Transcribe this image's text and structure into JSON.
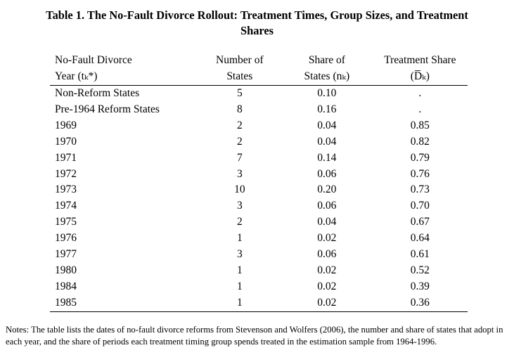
{
  "title_line1": "Table 1. The No-Fault Divorce Rollout: Treatment Times, Group Sizes, and Treatment",
  "title_line2": "Shares",
  "headers": {
    "col1_line1": "No-Fault Divorce",
    "col1_line2": "Year (tₖ*)",
    "col2_line1": "Number of",
    "col2_line2": "States",
    "col3_line1": "Share of",
    "col3_line2": "States  (nₖ)",
    "col4_line1": "Treatment Share",
    "col4_line2": "(D̅ₖ)"
  },
  "rows": [
    {
      "year": "Non-Reform States",
      "states": "5",
      "share": "0.10",
      "treat": "."
    },
    {
      "year": "Pre-1964 Reform States",
      "states": "8",
      "share": "0.16",
      "treat": "."
    },
    {
      "year": "1969",
      "states": "2",
      "share": "0.04",
      "treat": "0.85"
    },
    {
      "year": "1970",
      "states": "2",
      "share": "0.04",
      "treat": "0.82"
    },
    {
      "year": "1971",
      "states": "7",
      "share": "0.14",
      "treat": "0.79"
    },
    {
      "year": "1972",
      "states": "3",
      "share": "0.06",
      "treat": "0.76"
    },
    {
      "year": "1973",
      "states": "10",
      "share": "0.20",
      "treat": "0.73"
    },
    {
      "year": "1974",
      "states": "3",
      "share": "0.06",
      "treat": "0.70"
    },
    {
      "year": "1975",
      "states": "2",
      "share": "0.04",
      "treat": "0.67"
    },
    {
      "year": "1976",
      "states": "1",
      "share": "0.02",
      "treat": "0.64"
    },
    {
      "year": "1977",
      "states": "3",
      "share": "0.06",
      "treat": "0.61"
    },
    {
      "year": "1980",
      "states": "1",
      "share": "0.02",
      "treat": "0.52"
    },
    {
      "year": "1984",
      "states": "1",
      "share": "0.02",
      "treat": "0.39"
    },
    {
      "year": "1985",
      "states": "1",
      "share": "0.02",
      "treat": "0.36"
    }
  ],
  "notes": "Notes: The table lists the dates of no-fault divorce reforms from Stevenson and Wolfers (2006), the number and share of states that adopt in each year, and the share of periods each treatment timing group spends treated in the estimation sample from 1964-1996."
}
